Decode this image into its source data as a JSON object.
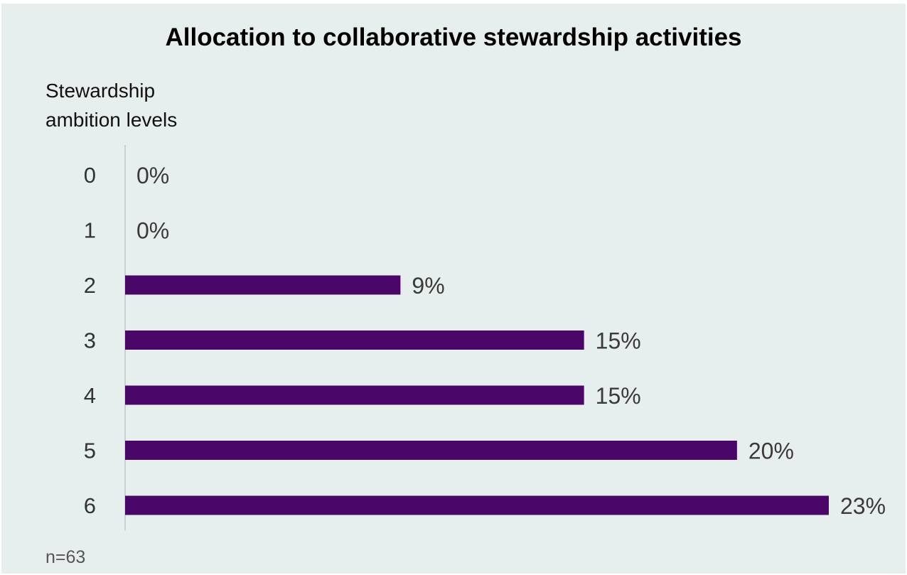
{
  "chart_data": {
    "type": "bar",
    "orientation": "horizontal",
    "title": "Allocation to collaborative stewardship activities",
    "ylabel_lines": [
      "Stewardship",
      "ambition levels"
    ],
    "xlabel": "",
    "categories": [
      "0",
      "1",
      "2",
      "3",
      "4",
      "5",
      "6"
    ],
    "values": [
      0,
      0,
      9,
      15,
      15,
      20,
      23
    ],
    "data_labels": [
      "0%",
      "0%",
      "9%",
      "15%",
      "15%",
      "20%",
      "23%"
    ],
    "unit": "%",
    "xlim": [
      0,
      23
    ],
    "bar_color": "#4b0767",
    "grid": false,
    "legend": "none",
    "footnote": "n=63"
  },
  "colors": {
    "background": "#e7efee",
    "bar": "#4b0767",
    "axis": "#c9cfce"
  }
}
